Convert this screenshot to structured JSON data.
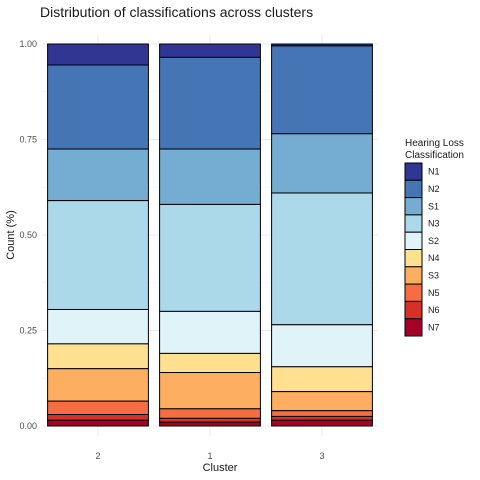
{
  "chart_data": {
    "type": "bar",
    "stacked": true,
    "title": "Distribution of classifications across clusters",
    "xlabel": "Cluster",
    "ylabel": "Count (%)",
    "ylim": [
      0,
      1
    ],
    "y_ticks": [
      "0.00",
      "0.25",
      "0.50",
      "0.75",
      "1.00"
    ],
    "y_tick_values": [
      0,
      0.25,
      0.5,
      0.75,
      1.0
    ],
    "categories": [
      "2",
      "1",
      "3"
    ],
    "grid": true,
    "legend": {
      "title_lines": [
        "Hearing Loss",
        "Classification"
      ],
      "position": "right"
    },
    "series": [
      {
        "name": "N1",
        "color": "#313695",
        "values": [
          0.055,
          0.035,
          0.005
        ]
      },
      {
        "name": "N2",
        "color": "#4575b4",
        "values": [
          0.22,
          0.24,
          0.23
        ]
      },
      {
        "name": "S1",
        "color": "#74add1",
        "values": [
          0.135,
          0.145,
          0.155
        ]
      },
      {
        "name": "N3",
        "color": "#abd9e9",
        "values": [
          0.285,
          0.28,
          0.345
        ]
      },
      {
        "name": "S2",
        "color": "#e0f3f8",
        "values": [
          0.09,
          0.11,
          0.11
        ]
      },
      {
        "name": "N4",
        "color": "#fee090",
        "values": [
          0.065,
          0.05,
          0.065
        ]
      },
      {
        "name": "S3",
        "color": "#fdae61",
        "values": [
          0.085,
          0.095,
          0.05
        ]
      },
      {
        "name": "N5",
        "color": "#f46d43",
        "values": [
          0.035,
          0.025,
          0.015
        ]
      },
      {
        "name": "N6",
        "color": "#d73027",
        "values": [
          0.015,
          0.01,
          0.01
        ]
      },
      {
        "name": "N7",
        "color": "#a50026",
        "values": [
          0.015,
          0.01,
          0.015
        ]
      }
    ]
  }
}
